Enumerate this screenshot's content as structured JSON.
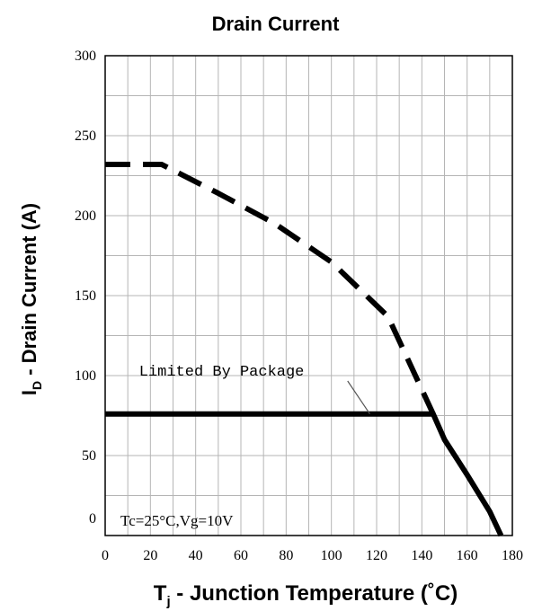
{
  "chart_data": {
    "type": "line",
    "title": "Drain Current",
    "xlabel": {
      "main": "T",
      "sub": "j",
      "rest": " - Junction Temperature (˚C)"
    },
    "ylabel": {
      "main": "I",
      "sub": "D",
      "rest": " - Drain Current (A)"
    },
    "xlim": [
      0,
      180
    ],
    "ylim": [
      0,
      300
    ],
    "x_ticks": [
      "0",
      "20",
      "40",
      "60",
      "80",
      "100",
      "120",
      "140",
      "160",
      "180"
    ],
    "y_ticks": [
      "0",
      "50",
      "100",
      "150",
      "200",
      "250",
      "300"
    ],
    "grid": true,
    "series": [
      {
        "style": "dashed",
        "x": [
          0,
          25,
          50,
          75,
          100,
          125,
          145
        ],
        "y": [
          232,
          232,
          214,
          195,
          171,
          137,
          76
        ]
      },
      {
        "style": "solid",
        "x": [
          0,
          145,
          150,
          160,
          170,
          175
        ],
        "y": [
          76,
          76,
          60,
          38,
          15,
          0
        ]
      }
    ],
    "annotations": [
      {
        "text": "Limited By Package",
        "x": 15,
        "y": 100,
        "points_to": {
          "x": 117,
          "y": 76
        }
      },
      {
        "text": "Tc=25°C,Vg=10V",
        "x": 2,
        "y": 5
      }
    ]
  }
}
